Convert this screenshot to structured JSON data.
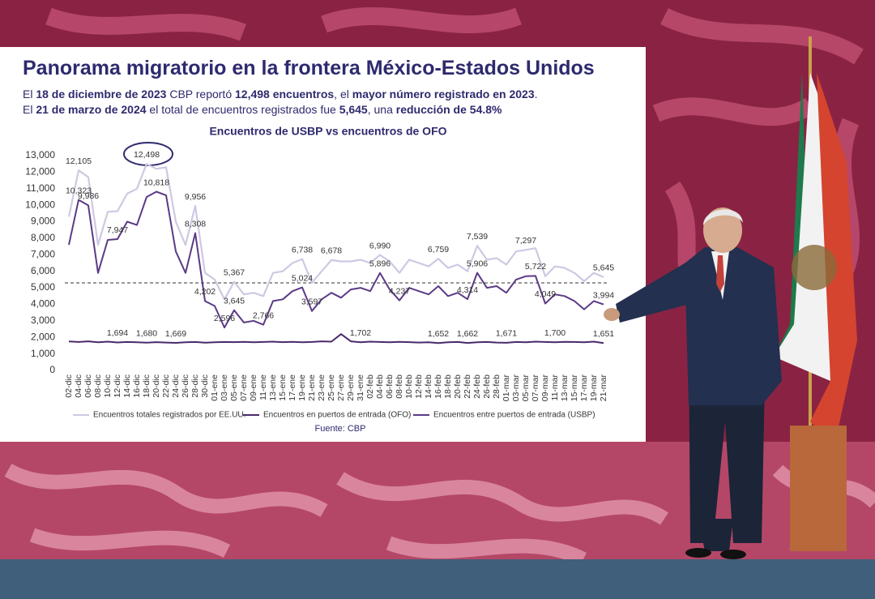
{
  "chart_data": {
    "type": "line",
    "title": "Panorama migratorio en la frontera México-Estados Unidos",
    "subtitle_lines": [
      [
        {
          "text": "El ",
          "bold": false
        },
        {
          "text": "18 de diciembre de 2023",
          "bold": true
        },
        {
          "text": " CBP reportó ",
          "bold": false
        },
        {
          "text": "12,498 encuentros",
          "bold": true
        },
        {
          "text": ", el ",
          "bold": false
        },
        {
          "text": "mayor número registrado en 2023",
          "bold": true
        },
        {
          "text": ".",
          "bold": false
        }
      ],
      [
        {
          "text": "El ",
          "bold": false
        },
        {
          "text": "21 de marzo de 2024",
          "bold": true
        },
        {
          "text": " el total de encuentros registrados fue ",
          "bold": false
        },
        {
          "text": "5,645",
          "bold": true
        },
        {
          "text": ", una ",
          "bold": false
        },
        {
          "text": "reducción de 54.8%",
          "bold": true
        }
      ]
    ],
    "chart_title": "Encuentros de USBP vs encuentros de OFO",
    "source": "Fuente: CBP",
    "categories": [
      "02-dic",
      "04-dic",
      "06-dic",
      "08-dic",
      "10-dic",
      "12-dic",
      "14-dic",
      "16-dic",
      "18-dic",
      "20-dic",
      "22-dic",
      "24-dic",
      "26-dic",
      "28-dic",
      "30-dic",
      "01-ene",
      "03-ene",
      "05-ene",
      "07-ene",
      "09-ene",
      "11-ene",
      "13-ene",
      "15-ene",
      "17-ene",
      "19-ene",
      "21-ene",
      "23-ene",
      "25-ene",
      "27-ene",
      "29-ene",
      "31-ene",
      "02-feb",
      "04-feb",
      "06-feb",
      "08-feb",
      "10-feb",
      "12-feb",
      "14-feb",
      "16-feb",
      "18-feb",
      "20-feb",
      "22-feb",
      "24-feb",
      "26-feb",
      "28-feb",
      "01-mar",
      "03-mar",
      "05-mar",
      "07-mar",
      "09-mar",
      "11-mar",
      "13-mar",
      "15-mar",
      "17-mar",
      "19-mar",
      "21-mar"
    ],
    "series": [
      {
        "name": "Encuentros totales registrados por EE.UU.",
        "color": "#cfc8e2",
        "width": 2.2,
        "values": [
          9300,
          12105,
          11700,
          7600,
          9600,
          9640,
          10700,
          11000,
          12498,
          12200,
          12300,
          9000,
          7600,
          9956,
          5900,
          5500,
          4300,
          5367,
          4600,
          4700,
          4500,
          5900,
          6000,
          6500,
          6738,
          5300,
          6000,
          6678,
          6600,
          6600,
          6700,
          6500,
          6990,
          6600,
          5900,
          6700,
          6500,
          6300,
          6759,
          6200,
          6400,
          6000,
          7539,
          6700,
          6800,
          6400,
          7200,
          7297,
          7400,
          5700,
          6300,
          6200,
          5900,
          5400,
          5900,
          5645
        ],
        "value_labels": [
          null,
          "12,105",
          null,
          null,
          null,
          null,
          null,
          null,
          "12,498",
          null,
          null,
          null,
          null,
          "9,956",
          null,
          null,
          null,
          "5,367",
          null,
          null,
          null,
          null,
          null,
          null,
          "6,738",
          null,
          null,
          "6,678",
          null,
          null,
          null,
          null,
          "6,990",
          null,
          null,
          null,
          null,
          null,
          "6,759",
          null,
          null,
          null,
          "7,539",
          null,
          null,
          null,
          null,
          "7,297",
          null,
          null,
          null,
          null,
          null,
          null,
          null,
          "5,645"
        ]
      },
      {
        "name": "Encuentros en puertos de entrada (OFO)",
        "color": "#4a2a6a",
        "width": 2,
        "values": [
          1750,
          1720,
          1760,
          1700,
          1740,
          1694,
          1720,
          1700,
          1680,
          1710,
          1690,
          1669,
          1700,
          1720,
          1680,
          1700,
          1720,
          1710,
          1730,
          1700,
          1720,
          1740,
          1710,
          1730,
          1700,
          1720,
          1760,
          1740,
          2200,
          1760,
          1702,
          1740,
          1720,
          1700,
          1730,
          1710,
          1690,
          1700,
          1652,
          1700,
          1720,
          1662,
          1700,
          1720,
          1690,
          1671,
          1720,
          1700,
          1740,
          1720,
          1700,
          1730,
          1720,
          1700,
          1740,
          1651
        ],
        "value_labels": [
          null,
          null,
          null,
          null,
          null,
          "1,694",
          null,
          null,
          "1,680",
          null,
          null,
          "1,669",
          null,
          null,
          null,
          null,
          null,
          null,
          null,
          null,
          null,
          null,
          null,
          null,
          null,
          null,
          null,
          null,
          null,
          null,
          "1,702",
          null,
          null,
          null,
          null,
          null,
          null,
          null,
          "1,652",
          null,
          null,
          "1,662",
          null,
          null,
          null,
          "1,671",
          null,
          null,
          null,
          null,
          "1,700",
          null,
          null,
          null,
          null,
          "1,651"
        ]
      },
      {
        "name": "Encuentros entre puertos de entrada (USBP)",
        "color": "#5b3a86",
        "width": 2,
        "values": [
          7600,
          10323,
          9986,
          5900,
          7900,
          7947,
          9000,
          8800,
          10500,
          10818,
          10600,
          7200,
          5900,
          8308,
          4202,
          3900,
          2596,
          3645,
          2900,
          3000,
          2766,
          4200,
          4300,
          4800,
          5024,
          3597,
          4300,
          4700,
          4400,
          4900,
          5000,
          4800,
          5896,
          4900,
          4237,
          5000,
          4800,
          4600,
          5100,
          4500,
          4700,
          4314,
          5906,
          5000,
          5100,
          4700,
          5500,
          5700,
          5722,
          4049,
          4600,
          4500,
          4200,
          3700,
          4200,
          3994
        ],
        "value_labels": [
          null,
          "10,323",
          "9,986",
          null,
          null,
          "7,947",
          null,
          null,
          null,
          "10,818",
          null,
          null,
          null,
          "8,308",
          "4,202",
          null,
          "2,596",
          "3,645",
          null,
          null,
          "2,766",
          null,
          null,
          null,
          "5,024",
          "3,597",
          null,
          null,
          null,
          null,
          null,
          null,
          "5,896",
          null,
          "4,237",
          null,
          null,
          null,
          null,
          null,
          null,
          "4,314",
          "5,906",
          null,
          null,
          null,
          null,
          null,
          "5,722",
          "4,049",
          null,
          null,
          null,
          null,
          null,
          "3,994"
        ]
      }
    ],
    "reference_line": 5300,
    "ylim": [
      0,
      13000
    ],
    "yticks": [
      0,
      {
        "value": 1000,
        "label": "1,000"
      },
      {
        "value": 2000,
        "label": "2,000"
      },
      {
        "value": 3000,
        "label": "3,000"
      },
      {
        "value": 4000,
        "label": "4,000"
      },
      {
        "value": 5000,
        "label": "5,000"
      },
      {
        "value": 6000,
        "label": "6,000"
      },
      {
        "value": 7000,
        "label": "7,000"
      },
      {
        "value": 8000,
        "label": "8,000"
      },
      {
        "value": 9000,
        "label": "9,000"
      },
      {
        "value": 10000,
        "label": "10,000"
      },
      {
        "value": 11000,
        "label": "11,000"
      },
      {
        "value": 12000,
        "label": "12,000"
      },
      {
        "value": 13000,
        "label": "13,000"
      }
    ],
    "grid": false,
    "legend": "bottom"
  }
}
